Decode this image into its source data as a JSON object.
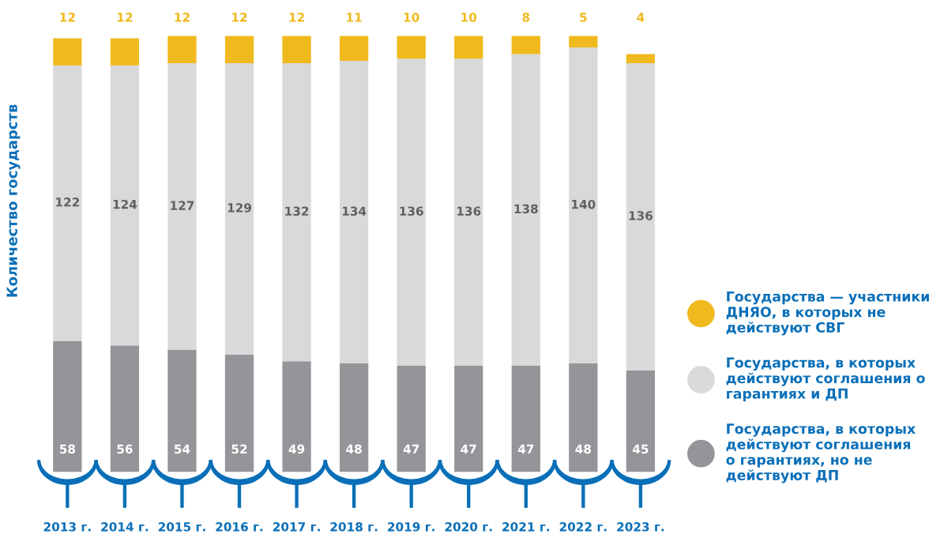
{
  "chart_data": {
    "type": "bar",
    "stacked": true,
    "ylabel": "Количество государств",
    "categories": [
      "2013 г.",
      "2014 г.",
      "2015 г.",
      "2016 г.",
      "2017 г.",
      "2018 г.",
      "2019 г.",
      "2020 г.",
      "2021 г.",
      "2022 г.",
      "2023 г."
    ],
    "series": [
      {
        "name": "Государства, в которых\nдействуют соглашения\nо гарантиях, но не\nдействуют ДП",
        "color": "#939598",
        "values": [
          58,
          56,
          54,
          52,
          49,
          48,
          47,
          47,
          47,
          48,
          45
        ]
      },
      {
        "name": "Государства, в которых\nдействуют соглашения о\nгарантиях и ДП",
        "color": "#d9d9d9",
        "values": [
          122,
          124,
          127,
          129,
          132,
          134,
          136,
          136,
          138,
          140,
          136
        ]
      },
      {
        "name": "Государства — участники\nДНЯО, в которых не\nдействуют СВГ",
        "color": "#f0b91e",
        "values": [
          12,
          12,
          12,
          12,
          12,
          11,
          10,
          10,
          8,
          5,
          4
        ]
      }
    ],
    "data_labels": true,
    "legend": "right",
    "grid": false
  }
}
